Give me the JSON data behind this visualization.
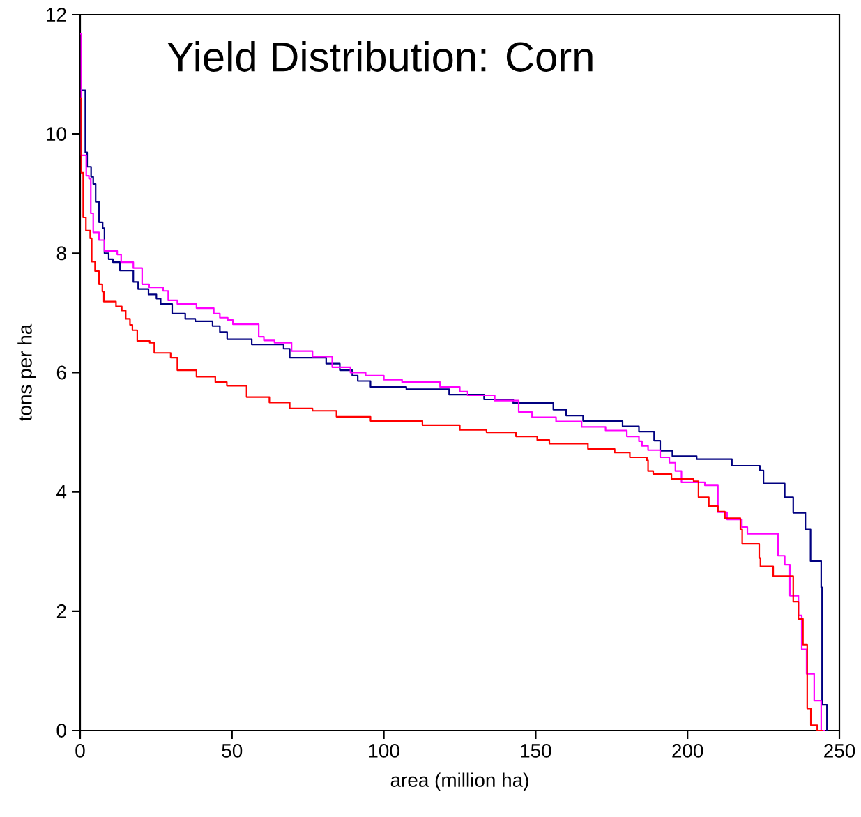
{
  "chart_data": {
    "type": "step",
    "title": "Yield Distribution: Corn",
    "xlabel": "area (million ha)",
    "ylabel": "tons per ha",
    "xlim": [
      0,
      250
    ],
    "ylim": [
      0,
      12
    ],
    "xticks": [
      0,
      50,
      100,
      150,
      200,
      250
    ],
    "yticks": [
      0,
      2,
      4,
      6,
      8,
      10,
      12
    ],
    "series": [
      {
        "color": "#000080",
        "x": [
          0,
          1.7,
          2.3,
          3.6,
          4.3,
          5.1,
          6.2,
          7.4,
          8.0,
          9.4,
          10.8,
          13.1,
          17.5,
          19.1,
          22.5,
          25.1,
          26.5,
          30.3,
          34.6,
          37.9,
          43.6,
          46.0,
          48.4,
          56.5,
          67,
          69,
          81,
          85.5,
          89.6,
          91.4,
          95.6,
          107.4,
          121.5,
          133,
          142.6,
          155.8,
          160,
          165.6,
          178.6,
          184,
          189,
          191,
          195,
          203,
          214.6,
          223.8,
          225,
          232,
          234.8,
          238.8,
          240.5,
          244,
          244.3,
          245.9
        ],
        "values": [
          10.73,
          9.69,
          9.45,
          9.28,
          9.16,
          8.86,
          8.52,
          8.42,
          8.0,
          7.9,
          7.85,
          7.71,
          7.52,
          7.4,
          7.31,
          7.24,
          7.15,
          6.99,
          6.9,
          6.86,
          6.78,
          6.68,
          6.56,
          6.47,
          6.4,
          6.25,
          6.15,
          6.04,
          5.95,
          5.86,
          5.76,
          5.72,
          5.63,
          5.55,
          5.49,
          5.38,
          5.28,
          5.19,
          5.1,
          5.01,
          4.86,
          4.69,
          4.6,
          4.55,
          4.44,
          4.36,
          4.14,
          3.91,
          3.65,
          3.37,
          2.84,
          2.4,
          0.43,
          0
        ]
      },
      {
        "color": "#ff00ff",
        "x": [
          0,
          0.4,
          2.0,
          2.9,
          3.5,
          4.3,
          6.2,
          8.0,
          12.2,
          13.5,
          17.5,
          20.4,
          22.7,
          27.3,
          29,
          32,
          38.3,
          44,
          46,
          48.6,
          50.3,
          58.8,
          60.5,
          64,
          69.6,
          76.5,
          83,
          89,
          94,
          100,
          106,
          118.5,
          125,
          127.6,
          136.5,
          144.4,
          148.8,
          156.7,
          165.1,
          173,
          180,
          184,
          185,
          187,
          191,
          194,
          196,
          198,
          205.7,
          210,
          213,
          217.9,
          219.7,
          229.8,
          232,
          233.7,
          236.5,
          237.6,
          239.2,
          241.7,
          244,
          245.4
        ],
        "values": [
          11.68,
          9.64,
          9.3,
          9.25,
          8.67,
          8.35,
          8.22,
          8.04,
          7.98,
          7.85,
          7.75,
          7.48,
          7.43,
          7.37,
          7.21,
          7.15,
          7.08,
          6.99,
          6.92,
          6.88,
          6.81,
          6.6,
          6.54,
          6.5,
          6.36,
          6.27,
          6.09,
          6.0,
          5.95,
          5.88,
          5.84,
          5.76,
          5.68,
          5.62,
          5.53,
          5.34,
          5.25,
          5.18,
          5.09,
          5.03,
          4.93,
          4.85,
          4.77,
          4.7,
          4.58,
          4.49,
          4.35,
          4.16,
          4.11,
          3.66,
          3.54,
          3.41,
          3.3,
          2.93,
          2.78,
          2.26,
          1.93,
          1.36,
          0.95,
          0.5,
          0,
          0
        ]
      },
      {
        "color": "#ff0000",
        "x": [
          0,
          0.4,
          1.0,
          1.9,
          3.3,
          3.8,
          4.9,
          6.2,
          7.3,
          7.8,
          11.8,
          13.7,
          15,
          16.4,
          17.2,
          18.8,
          22.9,
          24.4,
          29.8,
          32,
          38.3,
          44.5,
          48.3,
          54.8,
          62.3,
          69,
          76.5,
          84.4,
          95.6,
          112.7,
          125,
          133.8,
          143.5,
          150.5,
          154.5,
          167.2,
          176,
          181,
          186.6,
          187,
          188.7,
          194.7,
          202,
          203.6,
          207,
          210,
          212.3,
          217.4,
          218,
          221,
          223.6,
          224,
          228.2,
          234.8,
          236.5,
          238,
          239.4,
          240.6,
          242.7,
          244.5
        ],
        "values": [
          10.6,
          9.35,
          8.6,
          8.38,
          8.25,
          7.86,
          7.7,
          7.48,
          7.36,
          7.19,
          7.11,
          7.04,
          6.9,
          6.8,
          6.71,
          6.53,
          6.5,
          6.33,
          6.25,
          6.04,
          5.93,
          5.84,
          5.78,
          5.59,
          5.5,
          5.4,
          5.36,
          5.26,
          5.19,
          5.12,
          5.04,
          5.0,
          4.93,
          4.87,
          4.81,
          4.72,
          4.66,
          4.58,
          4.53,
          4.35,
          4.3,
          4.22,
          4.18,
          3.91,
          3.76,
          3.67,
          3.56,
          3.37,
          3.13,
          3.13,
          2.89,
          2.75,
          2.59,
          2.16,
          1.87,
          1.44,
          0.37,
          0.09,
          0,
          0
        ]
      }
    ]
  }
}
